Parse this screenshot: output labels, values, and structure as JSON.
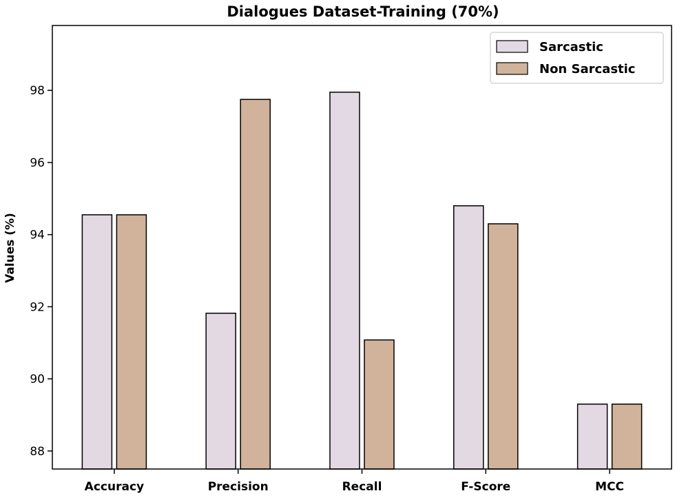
{
  "chart_data": {
    "type": "bar",
    "title": "Dialogues Dataset-Training (70%)",
    "xlabel": "",
    "ylabel": "Values (%)",
    "categories": [
      "Accuracy",
      "Precision",
      "Recall",
      "F-Score",
      "MCC"
    ],
    "series": [
      {
        "name": "Sarcastic",
        "color": "#e3d9e3",
        "values": [
          94.55,
          91.82,
          97.95,
          94.8,
          89.3
        ]
      },
      {
        "name": "Non Sarcastic",
        "color": "#d1b39b",
        "values": [
          94.55,
          97.75,
          91.08,
          94.3,
          89.3
        ]
      }
    ],
    "ylim": [
      87.5,
      99.8
    ],
    "yticks": [
      "88",
      "90",
      "92",
      "94",
      "96",
      "98"
    ],
    "grid": false,
    "legend_position": "top-right"
  }
}
